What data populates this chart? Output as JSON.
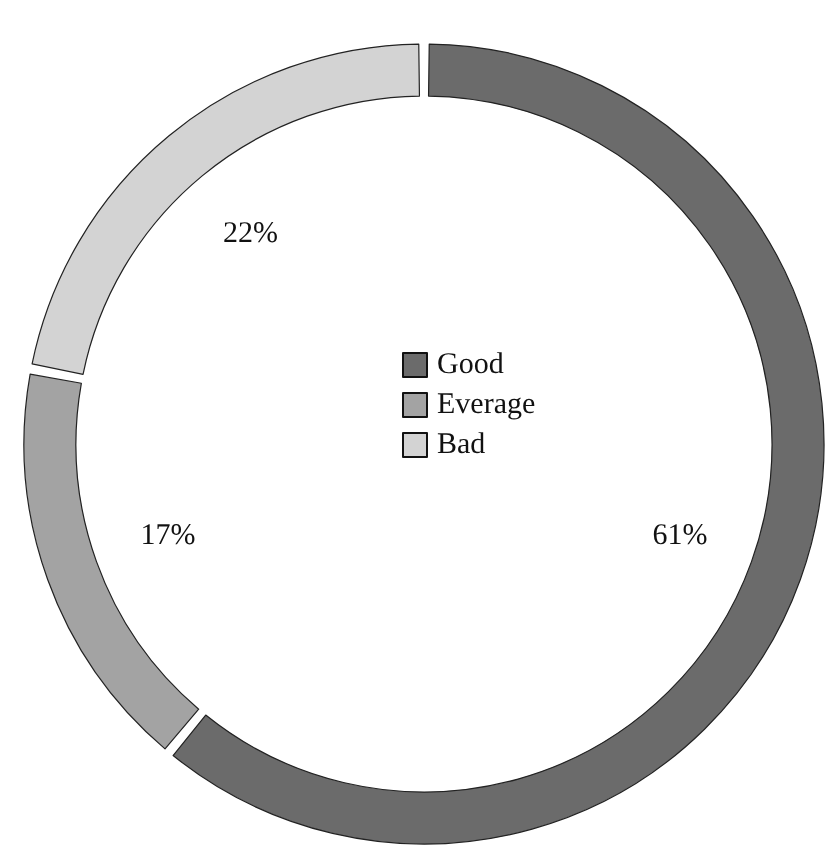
{
  "chart_data": {
    "type": "donut",
    "categories": [
      "Good",
      "Everage",
      "Bad"
    ],
    "values": [
      61,
      17,
      22
    ],
    "colors": [
      "#6b6b6b",
      "#a3a3a3",
      "#d3d3d3"
    ],
    "legend": "center",
    "value_labels": [
      "61%",
      "17%",
      "22%"
    ]
  }
}
